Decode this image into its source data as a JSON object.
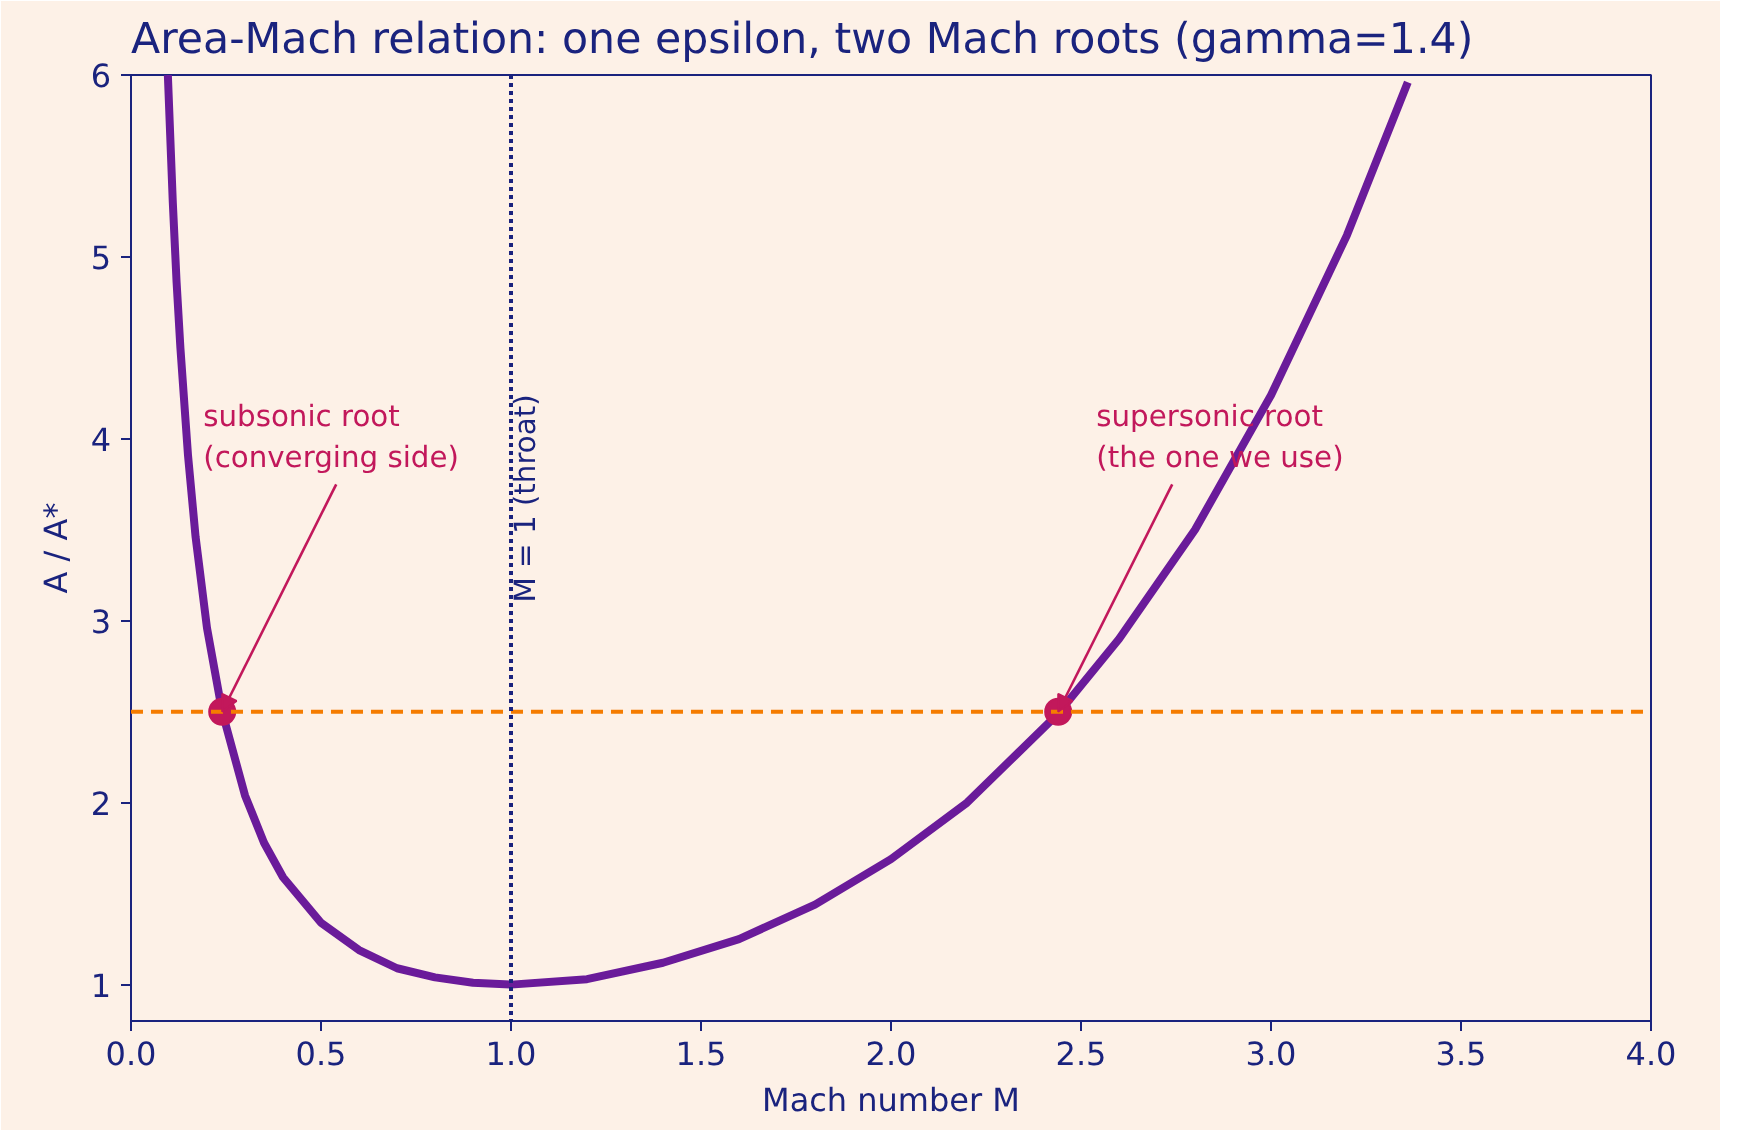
{
  "chart_data": {
    "type": "line",
    "title": "Area-Mach relation: one epsilon, two Mach roots  (gamma=1.4)",
    "xlabel": "Mach number M",
    "ylabel": "A / A*",
    "xlim": [
      0,
      4
    ],
    "ylim": [
      0.8,
      6
    ],
    "xticks": [
      {
        "value": 0,
        "label": "0.0"
      },
      0.5,
      {
        "value": 1,
        "label": "1.0"
      },
      1.5,
      {
        "value": 2,
        "label": "2.0"
      },
      2.5,
      {
        "value": 3,
        "label": "3.0"
      },
      3.5,
      {
        "value": 4,
        "label": "4.0"
      }
    ],
    "yticks": [
      1,
      2,
      3,
      4,
      5,
      6
    ],
    "grid": false,
    "series": [
      {
        "color": "#6a1b9a",
        "line_style": "solid",
        "x": [
          0.097,
          0.11,
          0.12,
          0.13,
          0.15,
          0.17,
          0.2,
          0.24,
          0.3,
          0.35,
          0.4,
          0.5,
          0.6,
          0.7,
          0.8,
          0.9,
          1.0,
          1.2,
          1.4,
          1.6,
          1.8,
          2.0,
          2.2,
          2.44,
          2.6,
          2.8,
          3.0,
          3.2,
          3.36
        ],
        "values": [
          6.0,
          5.3,
          4.86,
          4.5,
          3.91,
          3.46,
          2.96,
          2.5,
          2.04,
          1.78,
          1.59,
          1.34,
          1.19,
          1.09,
          1.04,
          1.01,
          1.0,
          1.03,
          1.12,
          1.25,
          1.44,
          1.69,
          2.0,
          2.49,
          2.9,
          3.5,
          4.24,
          5.12,
          5.96
        ]
      },
      {
        "type": "scatter",
        "color": "#c2185b",
        "marker": "circle",
        "x": [
          0.24,
          2.44
        ],
        "values": [
          2.5,
          2.5
        ]
      }
    ],
    "ref_lines": [
      {
        "axis": "y",
        "value": 2.5,
        "label": null,
        "color": "#f57c00",
        "line_style": "dashed"
      },
      {
        "axis": "x",
        "value": 1.0,
        "label": "M = 1 (throat)",
        "color": "#1a237e",
        "line_style": "dotted"
      }
    ],
    "annotations": [
      {
        "text": "subsonic root\n(converging side)",
        "x": 0.24,
        "y": 2.5
      },
      {
        "text": "supersonic root\n(the one we use)",
        "x": 2.44,
        "y": 2.5
      }
    ]
  }
}
